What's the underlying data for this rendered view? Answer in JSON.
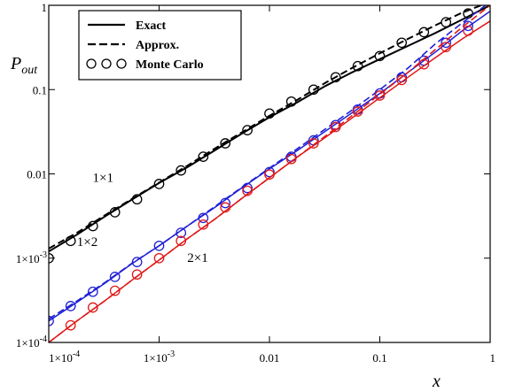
{
  "chart_data": {
    "type": "line",
    "title": "",
    "xlabel": "x",
    "ylabel": "P_out",
    "xscale": "log",
    "yscale": "log",
    "xlim": [
      0.0001,
      1
    ],
    "ylim": [
      0.0001,
      1
    ],
    "grid": false,
    "legend_position": "top-left",
    "x_tick_labels": [
      "1×10^-4",
      "1×10^-3",
      "0.01",
      "0.1",
      "1"
    ],
    "y_tick_labels": [
      "1×10^-4",
      "1×10^-3",
      "0.01",
      "0.1",
      "1"
    ],
    "legend": [
      {
        "label": "Exact",
        "style": "solid"
      },
      {
        "label": "Approx.",
        "style": "dashed"
      },
      {
        "label": "Monte Carlo",
        "style": "circles"
      }
    ],
    "colors": {
      "1×1": "#000000",
      "1×2": "#1f1fd6",
      "2×1": "#e01818"
    },
    "series": [
      {
        "name": "1×1",
        "color": "#000000",
        "exact": {
          "x": [
            0.0001,
            0.00018,
            0.00032,
            0.00056,
            0.001,
            0.0018,
            0.0032,
            0.0056,
            0.01,
            0.018,
            0.032,
            0.056,
            0.1,
            0.18,
            0.32,
            0.56,
            1
          ],
          "y": [
            0.0012,
            0.0019,
            0.0031,
            0.0049,
            0.0078,
            0.012,
            0.019,
            0.03,
            0.047,
            0.071,
            0.11,
            0.16,
            0.23,
            0.33,
            0.47,
            0.68,
            1.0
          ]
        },
        "approx": {
          "x": [
            0.0001,
            0.00018,
            0.00032,
            0.00056,
            0.001,
            0.0018,
            0.0032,
            0.0056,
            0.01,
            0.018,
            0.032,
            0.056,
            0.1,
            0.18,
            0.32,
            0.56,
            1
          ],
          "y": [
            0.0013,
            0.002,
            0.0032,
            0.005,
            0.0079,
            0.0125,
            0.02,
            0.031,
            0.049,
            0.076,
            0.12,
            0.18,
            0.27,
            0.4,
            0.58,
            0.82,
            1.1
          ]
        },
        "monte_carlo": {
          "x": [
            0.0001,
            0.000158,
            0.000251,
            0.000398,
            0.000631,
            0.001,
            0.00158,
            0.00251,
            0.00398,
            0.00631,
            0.01,
            0.0158,
            0.0251,
            0.0398,
            0.0631,
            0.1,
            0.158,
            0.251,
            0.398,
            0.631
          ],
          "y": [
            0.001,
            0.0016,
            0.0024,
            0.0035,
            0.005,
            0.0076,
            0.011,
            0.016,
            0.023,
            0.033,
            0.052,
            0.072,
            0.1,
            0.14,
            0.19,
            0.25,
            0.36,
            0.48,
            0.63,
            0.8
          ]
        }
      },
      {
        "name": "1×2",
        "color": "#1f1fd6",
        "exact": {
          "x": [
            0.0001,
            0.00018,
            0.00032,
            0.00056,
            0.001,
            0.0018,
            0.0032,
            0.0056,
            0.01,
            0.018,
            0.032,
            0.056,
            0.1,
            0.18,
            0.32,
            0.56,
            1
          ],
          "y": [
            0.00018,
            0.0003,
            0.0005,
            0.00085,
            0.0014,
            0.0024,
            0.004,
            0.0068,
            0.0115,
            0.019,
            0.032,
            0.053,
            0.09,
            0.16,
            0.28,
            0.5,
            0.85
          ]
        },
        "approx": {
          "x": [
            0.0001,
            0.00018,
            0.00032,
            0.00056,
            0.001,
            0.0018,
            0.0032,
            0.0056,
            0.01,
            0.018,
            0.032,
            0.056,
            0.1,
            0.18,
            0.32,
            0.56,
            1
          ],
          "y": [
            0.00019,
            0.00031,
            0.00051,
            0.00086,
            0.0014,
            0.0024,
            0.0041,
            0.0069,
            0.0117,
            0.02,
            0.034,
            0.057,
            0.1,
            0.18,
            0.35,
            0.62,
            1.1
          ]
        },
        "monte_carlo": {
          "x": [
            0.0001,
            0.000158,
            0.000251,
            0.000398,
            0.000631,
            0.001,
            0.00158,
            0.00251,
            0.00398,
            0.00631,
            0.01,
            0.0158,
            0.0251,
            0.0398,
            0.0631,
            0.1,
            0.158,
            0.251,
            0.398,
            0.631
          ],
          "y": [
            0.00018,
            0.00027,
            0.0004,
            0.0006,
            0.0009,
            0.0014,
            0.002,
            0.003,
            0.0045,
            0.0068,
            0.0105,
            0.016,
            0.025,
            0.038,
            0.058,
            0.09,
            0.14,
            0.22,
            0.36,
            0.57
          ]
        }
      },
      {
        "name": "2×1",
        "color": "#e01818",
        "exact": {
          "x": [
            0.0001,
            0.00018,
            0.00032,
            0.00056,
            0.001,
            0.0018,
            0.0032,
            0.0056,
            0.01,
            0.018,
            0.032,
            0.056,
            0.1,
            0.18,
            0.32,
            0.56,
            1
          ],
          "y": [
            0.0001,
            0.00018,
            0.00031,
            0.00054,
            0.00095,
            0.0017,
            0.0029,
            0.0051,
            0.009,
            0.016,
            0.027,
            0.046,
            0.08,
            0.14,
            0.24,
            0.4,
            0.65
          ]
        },
        "approx": {
          "x": [
            0.0001,
            0.00018,
            0.00032,
            0.00056,
            0.001,
            0.0018,
            0.0032,
            0.0056,
            0.01,
            0.018,
            0.032,
            0.056,
            0.1,
            0.18,
            0.32,
            0.56,
            1
          ],
          "y": [
            0.0001,
            0.00018,
            0.00031,
            0.00054,
            0.00095,
            0.0017,
            0.0029,
            0.0051,
            0.009,
            0.016,
            0.028,
            0.049,
            0.088,
            0.16,
            0.3,
            0.55,
            1.0
          ]
        },
        "monte_carlo": {
          "x": [
            0.000158,
            0.000251,
            0.000398,
            0.000631,
            0.001,
            0.00158,
            0.00251,
            0.00398,
            0.00631,
            0.01,
            0.0158,
            0.0251,
            0.0398,
            0.0631,
            0.1,
            0.158,
            0.251,
            0.398,
            0.631
          ],
          "y": [
            0.00016,
            0.00026,
            0.00041,
            0.00064,
            0.001,
            0.0016,
            0.0025,
            0.004,
            0.0063,
            0.0098,
            0.015,
            0.023,
            0.036,
            0.055,
            0.085,
            0.13,
            0.2,
            0.32,
            0.5
          ]
        }
      }
    ],
    "series_labels": [
      {
        "text": "1×1",
        "x": 0.00025,
        "y": 0.008
      },
      {
        "text": "1×2",
        "x": 0.00018,
        "y": 0.0014
      },
      {
        "text": "2×1",
        "x": 0.0018,
        "y": 0.0009
      }
    ]
  }
}
